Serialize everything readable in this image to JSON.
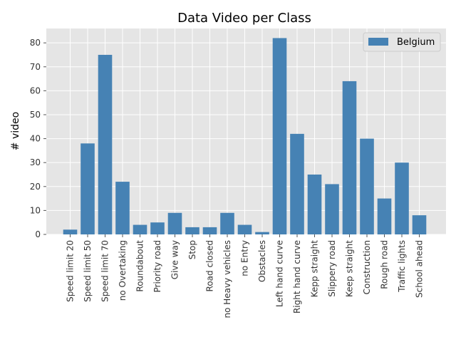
{
  "chart_data": {
    "type": "bar",
    "title": "Data Video per Class",
    "xlabel": "",
    "ylabel": "# video",
    "ylim": [
      0,
      86
    ],
    "yticks": [
      0,
      10,
      20,
      30,
      40,
      50,
      60,
      70,
      80
    ],
    "grid": true,
    "legend_position": "top-right",
    "colors": {
      "bar": "#4682b4",
      "plot_bg": "#e5e5e5",
      "grid": "#ffffff"
    },
    "categories": [
      "Speed limit 20",
      "Speed limit 50",
      "Speed limit 70",
      "no Overtaking",
      "Roundabout",
      "Priority road",
      "Give way",
      "Stop",
      "Road closed",
      "no Heavy vehicles",
      "no Entry",
      "Obstacles",
      "Left hand curve",
      "Right hand curve",
      "Kepp straight",
      "Slippery road",
      "Keep straight",
      "Construction",
      "Rough road",
      "Traffic lights",
      "School ahead"
    ],
    "series": [
      {
        "name": "Belgium",
        "values": [
          2,
          38,
          75,
          22,
          4,
          5,
          9,
          3,
          3,
          9,
          4,
          1,
          82,
          42,
          25,
          21,
          64,
          40,
          15,
          30,
          8
        ]
      }
    ]
  }
}
